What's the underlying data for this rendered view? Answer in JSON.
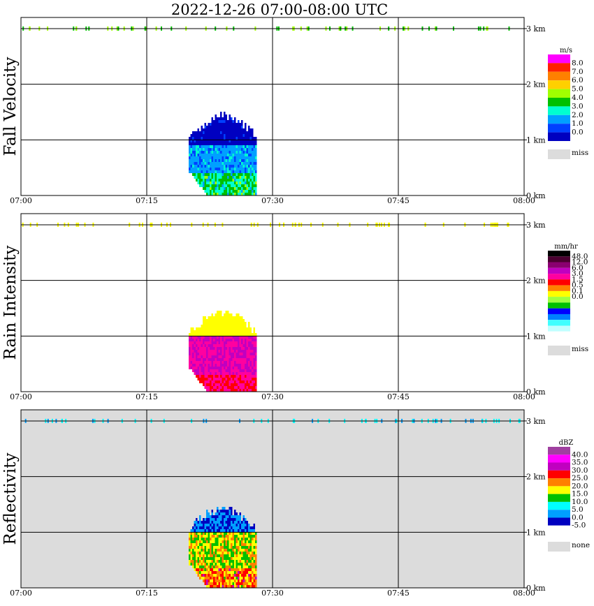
{
  "title": "2022-12-26  07:00-08:00 UTC",
  "time_ticks": [
    "07:00",
    "07:15",
    "07:30",
    "07:45",
    "08:00"
  ],
  "height_ticks": [
    "0 km",
    "1 km",
    "2 km",
    "3 km"
  ],
  "colors": {
    "missing": "#dcdcdc",
    "grid": "#000000"
  },
  "chart_data": [
    {
      "type": "heatmap",
      "panel": "fall-velocity",
      "ylabel": "Fall Velocity",
      "unit": "m/s",
      "x_range": [
        "07:00",
        "08:00"
      ],
      "y_range_km": [
        0,
        3.2
      ],
      "grid": true,
      "colorbar": {
        "labels": [
          "8.0",
          "7.0",
          "6.0",
          "5.0",
          "4.0",
          "3.0",
          "2.0",
          "1.0",
          "0.0"
        ],
        "colors": [
          "#ff00ff",
          "#ff2000",
          "#ff8000",
          "#ffd000",
          "#a0ff00",
          "#00c000",
          "#00ffd0",
          "#00a0ff",
          "#0040ff",
          "#0000c0"
        ],
        "missing_label": "miss"
      },
      "event": {
        "start": "07:20",
        "end": "07:28",
        "top_km": 1.4
      },
      "layers": [
        {
          "y_km": [
            0,
            0.38
          ],
          "value": 4.0
        },
        {
          "y_km": [
            0.38,
            0.9
          ],
          "value": 2.5
        },
        {
          "y_km": [
            0.9,
            1.4
          ],
          "value": 0.8
        }
      ],
      "upper_echo_km": 3.0
    },
    {
      "type": "heatmap",
      "panel": "rain-intensity",
      "ylabel": "Rain Intensity",
      "unit": "mm/hr",
      "x_range": [
        "07:00",
        "08:00"
      ],
      "y_range_km": [
        0,
        3.2
      ],
      "grid": true,
      "colorbar": {
        "labels": [
          "48.0",
          "12.0",
          "6.0",
          "3.0",
          "1.5",
          "0.5",
          "0.1",
          "0.0"
        ],
        "colors": [
          "#000000",
          "#4a0030",
          "#8a0070",
          "#c000c0",
          "#ff00a0",
          "#ff0000",
          "#ff8000",
          "#ffff00",
          "#a0ff40",
          "#00c000",
          "#0000ff",
          "#0080ff",
          "#40ffff",
          "#c0ffff",
          "#ffffff"
        ],
        "missing_label": "miss"
      },
      "event": {
        "start": "07:20",
        "end": "07:28",
        "top_km": 1.4
      },
      "layers": [
        {
          "y_km": [
            0,
            0.3
          ],
          "value": 3.0
        },
        {
          "y_km": [
            0.3,
            1.0
          ],
          "value": 6.0
        },
        {
          "y_km": [
            1.0,
            1.4
          ],
          "value": 0.3
        }
      ],
      "upper_echo_km": 3.0
    },
    {
      "type": "heatmap",
      "panel": "reflectivity",
      "ylabel": "Reflectivity",
      "unit": "dBZ",
      "x_range": [
        "07:00",
        "08:00"
      ],
      "y_range_km": [
        0,
        3.2
      ],
      "grid": true,
      "colorbar": {
        "labels": [
          "40.0",
          "35.0",
          "30.0",
          "25.0",
          "20.0",
          "15.0",
          "10.0",
          "5.0",
          "0.0",
          "-5.0"
        ],
        "colors": [
          "#a040a0",
          "#ff00ff",
          "#c000c0",
          "#ff0000",
          "#ff8000",
          "#ffff00",
          "#00c000",
          "#00ffff",
          "#00a0ff",
          "#0000c0",
          "#ffffff"
        ],
        "missing_label": "none"
      },
      "event": {
        "start": "07:20",
        "end": "07:28",
        "top_km": 1.4
      },
      "layers": [
        {
          "y_km": [
            0,
            0.35
          ],
          "value": 28
        },
        {
          "y_km": [
            0.35,
            1.0
          ],
          "value": 22
        },
        {
          "y_km": [
            1.0,
            1.4
          ],
          "value": 5
        }
      ],
      "upper_echo_km": 3.0
    }
  ]
}
